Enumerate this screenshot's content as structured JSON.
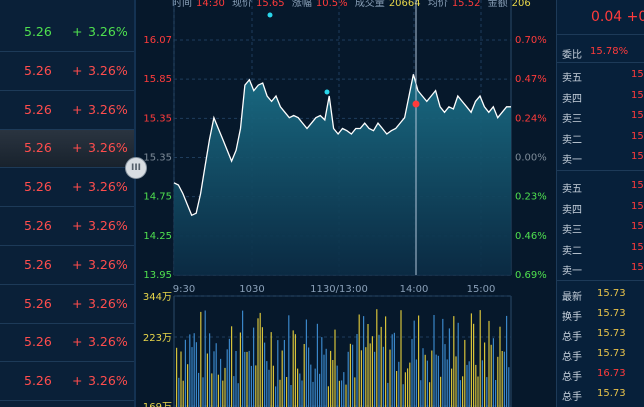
{
  "info_bar": {
    "time_label": "时间",
    "time": "14:30",
    "price_label": "现价",
    "price": "15.65",
    "change_label": "涨幅",
    "change": "10.5%",
    "volume_label": "成交量",
    "volume": "20664",
    "avg_label": "均价",
    "avg": "15.52",
    "amount_label": "金额",
    "amount": "206"
  },
  "left_list": [
    {
      "price": "5.26",
      "plus": "+",
      "change": "3.26%",
      "color": "green"
    },
    {
      "price": "5.26",
      "plus": "+",
      "change": "3.26%",
      "color": "up"
    },
    {
      "price": "5.26",
      "plus": "+",
      "change": "3.26%",
      "color": "up"
    },
    {
      "price": "5.26",
      "plus": "+",
      "change": "3.26%",
      "color": "up",
      "selected": true
    },
    {
      "price": "5.26",
      "plus": "+",
      "change": "3.26%",
      "color": "up"
    },
    {
      "price": "5.26",
      "plus": "+",
      "change": "3.26%",
      "color": "up"
    },
    {
      "price": "5.26",
      "plus": "+",
      "change": "3.26%",
      "color": "up"
    },
    {
      "price": "5.26",
      "plus": "+",
      "change": "3.26%",
      "color": "up"
    },
    {
      "price": "5.26",
      "plus": "+",
      "change": "3.26%",
      "color": "up"
    },
    {
      "price": "5.26",
      "plus": "+",
      "change": "3.26%",
      "color": "up"
    }
  ],
  "handle_label": "III",
  "chart": {
    "price_ticks": [
      "16.07",
      "15.85",
      "15.35",
      "15.35",
      "14.75",
      "14.25",
      "13.95"
    ],
    "pct_ticks": [
      "0.70%",
      "0.47%",
      "0.24%",
      "0.00%",
      "0.23%",
      "0.46%",
      "0.69%"
    ],
    "time_ticks": [
      "9:30",
      "1030",
      "1130/13:00",
      "14:00",
      "15:00"
    ],
    "vol_ticks": [
      "344万",
      "223万",
      "169万"
    ]
  },
  "chart_data": {
    "type": "line",
    "x_labels": [
      "9:30",
      "1030",
      "1130/13:00",
      "14:00",
      "15:00"
    ],
    "ylim": [
      13.95,
      16.07
    ],
    "price_series": [
      14.8,
      14.78,
      14.7,
      14.6,
      14.5,
      14.52,
      14.7,
      14.95,
      15.2,
      15.4,
      15.3,
      15.2,
      15.1,
      15.0,
      15.1,
      15.3,
      15.7,
      15.75,
      15.65,
      15.7,
      15.72,
      15.6,
      15.55,
      15.6,
      15.5,
      15.45,
      15.4,
      15.42,
      15.4,
      15.35,
      15.3,
      15.35,
      15.4,
      15.42,
      15.38,
      15.6,
      15.3,
      15.25,
      15.3,
      15.28,
      15.25,
      15.3,
      15.3,
      15.35,
      15.3,
      15.28,
      15.35,
      15.3,
      15.25,
      15.28,
      15.3,
      15.35,
      15.4,
      15.6,
      15.8,
      15.65,
      15.6,
      15.55,
      15.6,
      15.65,
      15.5,
      15.45,
      15.5,
      15.48,
      15.6,
      15.55,
      15.5,
      15.45,
      15.55,
      15.6,
      15.5,
      15.45,
      15.5,
      15.4,
      15.45,
      15.5,
      15.5
    ]
  },
  "right_panel": {
    "top_change": "0.04  +0",
    "weibi_label": "委比",
    "weibi": "15.78%",
    "sell_labels": [
      "卖五",
      "卖四",
      "卖三",
      "卖二",
      "卖一"
    ],
    "sell_values": [
      "15",
      "15",
      "15",
      "15",
      "15"
    ],
    "buy_labels": [
      "卖五",
      "卖四",
      "卖三",
      "卖二",
      "卖一"
    ],
    "buy_values": [
      "15",
      "15",
      "15",
      "15",
      "15"
    ],
    "stats": [
      {
        "label": "最新",
        "value": "15.73"
      },
      {
        "label": "换手",
        "value": "15.73"
      },
      {
        "label": "总手",
        "value": "15.73"
      },
      {
        "label": "总手",
        "value": "15.73"
      },
      {
        "label": "总手",
        "value": "16.73"
      },
      {
        "label": "总手",
        "value": "15.73"
      }
    ]
  },
  "colors": {
    "up": "#ff3b3b",
    "down": "#4fe04f",
    "line": "#ffffff",
    "cyan": "#2ad6ea",
    "yellow": "#e8d64a"
  }
}
